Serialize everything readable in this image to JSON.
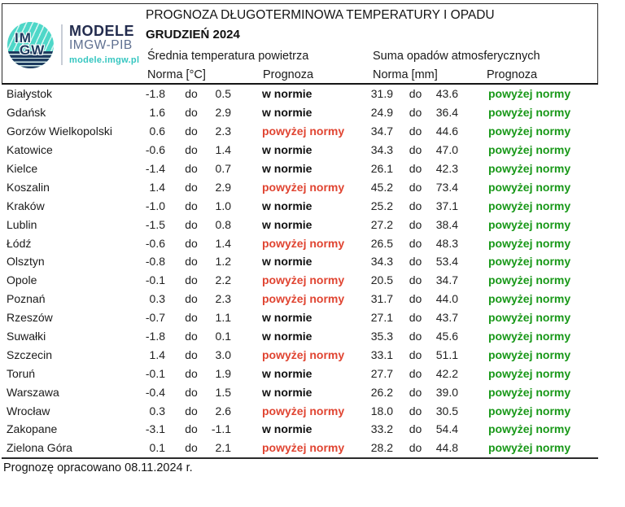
{
  "logo": {
    "circle_line1": "IM",
    "circle_line2": "GW",
    "brand_line1": "MODELE",
    "brand_line2": "IMGW-PIB",
    "brand_url": "modele.imgw.pl"
  },
  "header": {
    "title": "PROGNOZA DŁUGOTERMINOWA TEMPERATURY I OPADU",
    "subtitle": "GRUDZIEŃ 2024",
    "temp_section": "Średnia temperatura powietrza",
    "precip_section": "Suma opadów atmosferycznych",
    "temp_norma_label": "Norma [°C]",
    "temp_prognoza_label": "Prognoza",
    "precip_norma_label": "Norma [mm]",
    "precip_prognoza_label": "Prognoza"
  },
  "separator_word": "do",
  "colors": {
    "above_norm_temp": "#e04431",
    "above_norm_precip": "#189818",
    "in_norm": "#111111",
    "logo_teal": "#4ed7c8",
    "logo_navy": "#1d3a5f",
    "brand_navy": "#232c4e",
    "brand_gray": "#5e6f90",
    "brand_teal": "#35c6c0"
  },
  "footer": {
    "note": "Prognozę opracowano 08.11.2024 r."
  },
  "rows": [
    {
      "city": "Białystok",
      "t_low": "-1.8",
      "t_high": "0.5",
      "t_prog": "w normie",
      "t_status": "norm",
      "p_low": "31.9",
      "p_high": "43.6",
      "p_prog": "powyżej normy",
      "p_status": "above"
    },
    {
      "city": "Gdańsk",
      "t_low": "1.6",
      "t_high": "2.9",
      "t_prog": "w normie",
      "t_status": "norm",
      "p_low": "24.9",
      "p_high": "36.4",
      "p_prog": "powyżej normy",
      "p_status": "above"
    },
    {
      "city": "Gorzów Wielkopolski",
      "t_low": "0.6",
      "t_high": "2.3",
      "t_prog": "powyżej normy",
      "t_status": "above",
      "p_low": "34.7",
      "p_high": "44.6",
      "p_prog": "powyżej normy",
      "p_status": "above"
    },
    {
      "city": "Katowice",
      "t_low": "-0.6",
      "t_high": "1.4",
      "t_prog": "w normie",
      "t_status": "norm",
      "p_low": "34.3",
      "p_high": "47.0",
      "p_prog": "powyżej normy",
      "p_status": "above"
    },
    {
      "city": "Kielce",
      "t_low": "-1.4",
      "t_high": "0.7",
      "t_prog": "w normie",
      "t_status": "norm",
      "p_low": "26.1",
      "p_high": "42.3",
      "p_prog": "powyżej normy",
      "p_status": "above"
    },
    {
      "city": "Koszalin",
      "t_low": "1.4",
      "t_high": "2.9",
      "t_prog": "powyżej normy",
      "t_status": "above",
      "p_low": "45.2",
      "p_high": "73.4",
      "p_prog": "powyżej normy",
      "p_status": "above"
    },
    {
      "city": "Kraków",
      "t_low": "-1.0",
      "t_high": "1.0",
      "t_prog": "w normie",
      "t_status": "norm",
      "p_low": "25.2",
      "p_high": "37.1",
      "p_prog": "powyżej normy",
      "p_status": "above"
    },
    {
      "city": "Lublin",
      "t_low": "-1.5",
      "t_high": "0.8",
      "t_prog": "w normie",
      "t_status": "norm",
      "p_low": "27.2",
      "p_high": "38.4",
      "p_prog": "powyżej normy",
      "p_status": "above"
    },
    {
      "city": "Łódź",
      "t_low": "-0.6",
      "t_high": "1.4",
      "t_prog": "powyżej normy",
      "t_status": "above",
      "p_low": "26.5",
      "p_high": "48.3",
      "p_prog": "powyżej normy",
      "p_status": "above"
    },
    {
      "city": "Olsztyn",
      "t_low": "-0.8",
      "t_high": "1.2",
      "t_prog": "w normie",
      "t_status": "norm",
      "p_low": "34.3",
      "p_high": "53.4",
      "p_prog": "powyżej normy",
      "p_status": "above"
    },
    {
      "city": "Opole",
      "t_low": "-0.1",
      "t_high": "2.2",
      "t_prog": "powyżej normy",
      "t_status": "above",
      "p_low": "20.5",
      "p_high": "34.7",
      "p_prog": "powyżej normy",
      "p_status": "above"
    },
    {
      "city": "Poznań",
      "t_low": "0.3",
      "t_high": "2.3",
      "t_prog": "powyżej normy",
      "t_status": "above",
      "p_low": "31.7",
      "p_high": "44.0",
      "p_prog": "powyżej normy",
      "p_status": "above"
    },
    {
      "city": "Rzeszów",
      "t_low": "-0.7",
      "t_high": "1.1",
      "t_prog": "w normie",
      "t_status": "norm",
      "p_low": "27.1",
      "p_high": "43.7",
      "p_prog": "powyżej normy",
      "p_status": "above"
    },
    {
      "city": "Suwałki",
      "t_low": "-1.8",
      "t_high": "0.1",
      "t_prog": "w normie",
      "t_status": "norm",
      "p_low": "35.3",
      "p_high": "45.6",
      "p_prog": "powyżej normy",
      "p_status": "above"
    },
    {
      "city": "Szczecin",
      "t_low": "1.4",
      "t_high": "3.0",
      "t_prog": "powyżej normy",
      "t_status": "above",
      "p_low": "33.1",
      "p_high": "51.1",
      "p_prog": "powyżej normy",
      "p_status": "above"
    },
    {
      "city": "Toruń",
      "t_low": "-0.1",
      "t_high": "1.9",
      "t_prog": "w normie",
      "t_status": "norm",
      "p_low": "27.7",
      "p_high": "42.2",
      "p_prog": "powyżej normy",
      "p_status": "above"
    },
    {
      "city": "Warszawa",
      "t_low": "-0.4",
      "t_high": "1.5",
      "t_prog": "w normie",
      "t_status": "norm",
      "p_low": "26.2",
      "p_high": "39.0",
      "p_prog": "powyżej normy",
      "p_status": "above"
    },
    {
      "city": "Wrocław",
      "t_low": "0.3",
      "t_high": "2.6",
      "t_prog": "powyżej normy",
      "t_status": "above",
      "p_low": "18.0",
      "p_high": "30.5",
      "p_prog": "powyżej normy",
      "p_status": "above"
    },
    {
      "city": "Zakopane",
      "t_low": "-3.1",
      "t_high": "-1.1",
      "t_prog": "w normie",
      "t_status": "norm",
      "p_low": "33.2",
      "p_high": "54.4",
      "p_prog": "powyżej normy",
      "p_status": "above"
    },
    {
      "city": "Zielona Góra",
      "t_low": "0.1",
      "t_high": "2.1",
      "t_prog": "powyżej normy",
      "t_status": "above",
      "p_low": "28.2",
      "p_high": "44.8",
      "p_prog": "powyżej normy",
      "p_status": "above"
    }
  ]
}
